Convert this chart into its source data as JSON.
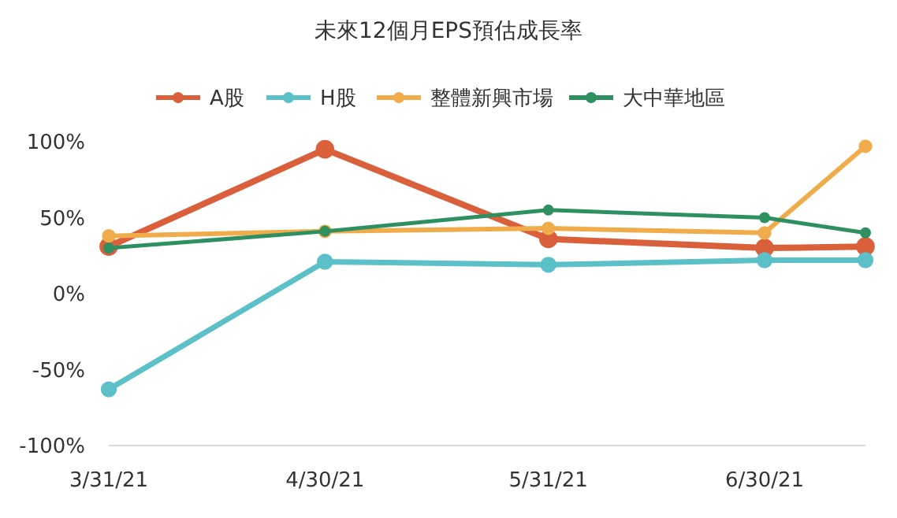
{
  "chart_data": {
    "type": "line",
    "title": "未來12個月EPS預估成長率",
    "x": [
      "2021-03-31",
      "2021-04-30",
      "2021-05-31",
      "2021-06-30",
      "2021-07-14"
    ],
    "series": [
      {
        "name": "A股",
        "color": "#d9603b",
        "values": [
          31,
          95,
          36,
          30,
          31
        ]
      },
      {
        "name": "H股",
        "color": "#5bc0c8",
        "values": [
          -63,
          21,
          19,
          22,
          22
        ]
      },
      {
        "name": "整體新興市場",
        "color": "#f0ac4a",
        "values": [
          38,
          41,
          43,
          40,
          97
        ]
      },
      {
        "name": "大中華地區",
        "color": "#2e9060",
        "values": [
          30,
          41,
          55,
          50,
          40
        ]
      }
    ],
    "xlim": [
      "2021-03-31",
      "2021-07-14"
    ],
    "xticks": [
      {
        "value": "2021-03-31",
        "label": "3/31/21"
      },
      {
        "value": "2021-04-30",
        "label": "4/30/21"
      },
      {
        "value": "2021-05-31",
        "label": "5/31/21"
      },
      {
        "value": "2021-06-30",
        "label": "6/30/21"
      }
    ],
    "ylim": [
      -100,
      100
    ],
    "yticks": [
      {
        "value": -100,
        "label": "-100%"
      },
      {
        "value": -50,
        "label": "-50%"
      },
      {
        "value": 0,
        "label": "0%"
      },
      {
        "value": 50,
        "label": "50%"
      },
      {
        "value": 100,
        "label": "100%"
      }
    ],
    "grid": false,
    "legend": "top",
    "marker": "circle",
    "line_style": "solid"
  }
}
